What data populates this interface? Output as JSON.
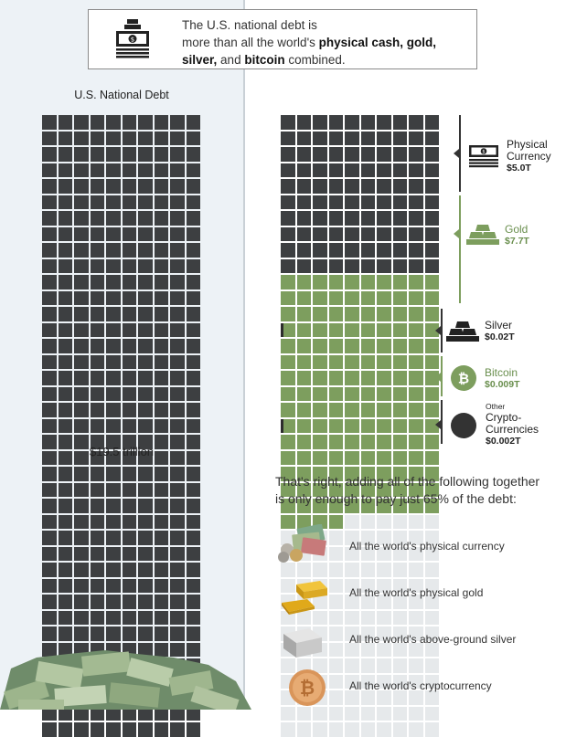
{
  "header": {
    "line1": "The U.S. national debt is",
    "line2_a": "more than all the world's ",
    "line2_b": "physical cash, gold,",
    "line3_a": "silver,",
    "line3_b": " and ",
    "line3_c": "bitcoin",
    "line3_d": " combined.",
    "icon": "cash-stack-icon"
  },
  "debt": {
    "title": "U.S. National Debt",
    "total_label": "$19.5 trillion",
    "color": "#3d3f41"
  },
  "assets": [
    {
      "name": "Physical Currency",
      "line1": "Physical",
      "line2": "Currency",
      "value_label": "$5.0T",
      "value": 5.0,
      "color": "#3d3f41",
      "icon": "cash-icon"
    },
    {
      "name": "Gold",
      "line1": "Gold",
      "value_label": "$7.7T",
      "value": 7.7,
      "color": "#7d9e5e",
      "icon": "gold-bars-icon"
    },
    {
      "name": "Silver",
      "line1": "Silver",
      "value_label": "$0.02T",
      "value": 0.02,
      "color": "#333333",
      "icon": "silver-bars-icon"
    },
    {
      "name": "Bitcoin",
      "line1": "Bitcoin",
      "value_label": "$0.009T",
      "value": 0.009,
      "color": "#7d9e5e",
      "icon": "bitcoin-icon"
    },
    {
      "name": "Other Crypto-Currencies",
      "line0": "Other",
      "line1": "Crypto-",
      "line2": "Currencies",
      "value_label": "$0.002T",
      "value": 0.002,
      "color": "#333333",
      "icon": "crypto-icon"
    }
  ],
  "grid_colors": {
    "empty": "#e6e9eb",
    "currency": "#3d3f41",
    "gold": "#7d9e5e",
    "sliver": "#2d2d2d"
  },
  "summary": {
    "line1": "That's right, adding all of the following together",
    "line2": "is only enough to pay just 65% of the debt:"
  },
  "list": [
    {
      "label": "All the world's physical currency",
      "icon": "banknotes-coins-icon"
    },
    {
      "label": "All the world's physical gold",
      "icon": "gold-bar-icon"
    },
    {
      "label": "All the world's above-ground silver",
      "icon": "silver-bar-icon"
    },
    {
      "label": "All the world's cryptocurrency",
      "icon": "bitcoin-coin-icon"
    }
  ]
}
